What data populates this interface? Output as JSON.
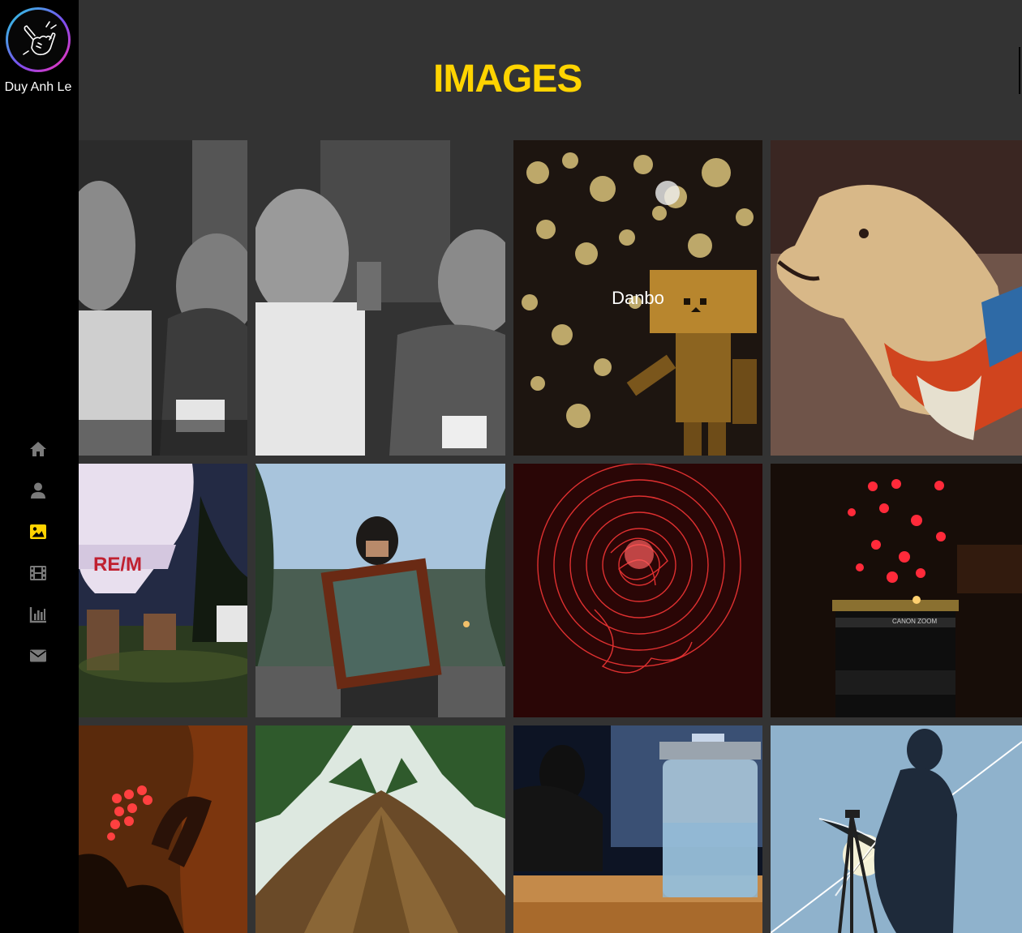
{
  "profile": {
    "name": "Duy Anh Le",
    "avatar_icon": "shaka-hand-icon"
  },
  "nav": {
    "items": [
      {
        "icon": "home-icon",
        "active": false
      },
      {
        "icon": "user-icon",
        "active": false
      },
      {
        "icon": "image-icon",
        "active": true
      },
      {
        "icon": "film-icon",
        "active": false
      },
      {
        "icon": "bar-chart-icon",
        "active": false
      },
      {
        "icon": "envelope-icon",
        "active": false
      }
    ]
  },
  "colors": {
    "accent": "#ffd400",
    "nav_inactive": "#7a7a7a",
    "sidebar_bg": "#000000",
    "page_bg": "#333333"
  },
  "header": {
    "title": "IMAGES"
  },
  "gallery": {
    "images": [
      {
        "caption": "",
        "subject": "grayscale couple portrait"
      },
      {
        "caption": "",
        "subject": "grayscale couple smiling"
      },
      {
        "caption": "Danbo",
        "subject": "danbo figure bokeh"
      },
      {
        "caption": "",
        "subject": "dog with bandana"
      },
      {
        "caption": "",
        "subject": "hot air balloon night"
      },
      {
        "caption": "",
        "subject": "girl holding mirror frame"
      },
      {
        "caption": "",
        "subject": "red light painting"
      },
      {
        "caption": "",
        "subject": "lens with red bokeh"
      },
      {
        "caption": "",
        "subject": "red lights silhouette"
      },
      {
        "caption": "",
        "subject": "tree looking up"
      },
      {
        "caption": "",
        "subject": "mason jar on table"
      },
      {
        "caption": "",
        "subject": "tripod silhouette sunset"
      }
    ]
  }
}
